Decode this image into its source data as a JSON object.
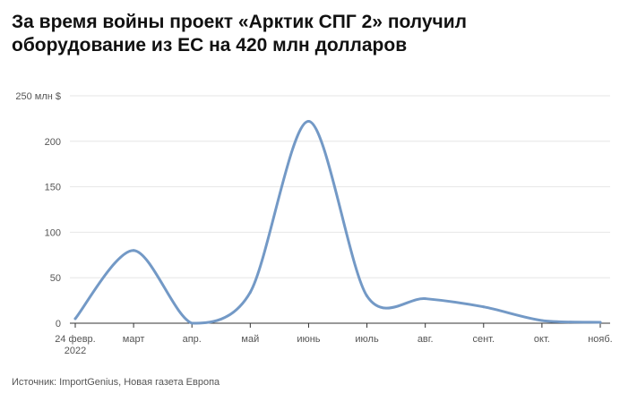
{
  "title_lines": [
    "За время войны проект «Арктик СПГ 2» получил",
    "оборудование из ЕС на 420 млн долларов"
  ],
  "source": "Источник: ImportGenius, Новая газета Европа",
  "colors": {
    "line": "#7399c6",
    "grid": "#e6e6e6",
    "axis": "#333333",
    "text": "#555555"
  },
  "chart_data": {
    "type": "line",
    "title": "За время войны проект «Арктик СПГ 2» получил оборудование из ЕС на 420 млн долларов",
    "xlabel": "",
    "ylabel": "",
    "y_unit_label": "250 млн $",
    "ylim": [
      0,
      250
    ],
    "yticks": [
      0,
      50,
      100,
      150,
      200,
      250
    ],
    "ytick_labels": [
      "0",
      "50",
      "100",
      "150",
      "200",
      "250 млн $"
    ],
    "grid": true,
    "categories": [
      "24 февр.|2022",
      "март",
      "апр.",
      "май",
      "июнь",
      "июль",
      "авг.",
      "сент.",
      "окт.",
      "нояб."
    ],
    "series": [
      {
        "values": [
          5,
          80,
          0,
          34,
          222,
          30,
          27,
          18,
          3,
          1
        ]
      }
    ]
  }
}
